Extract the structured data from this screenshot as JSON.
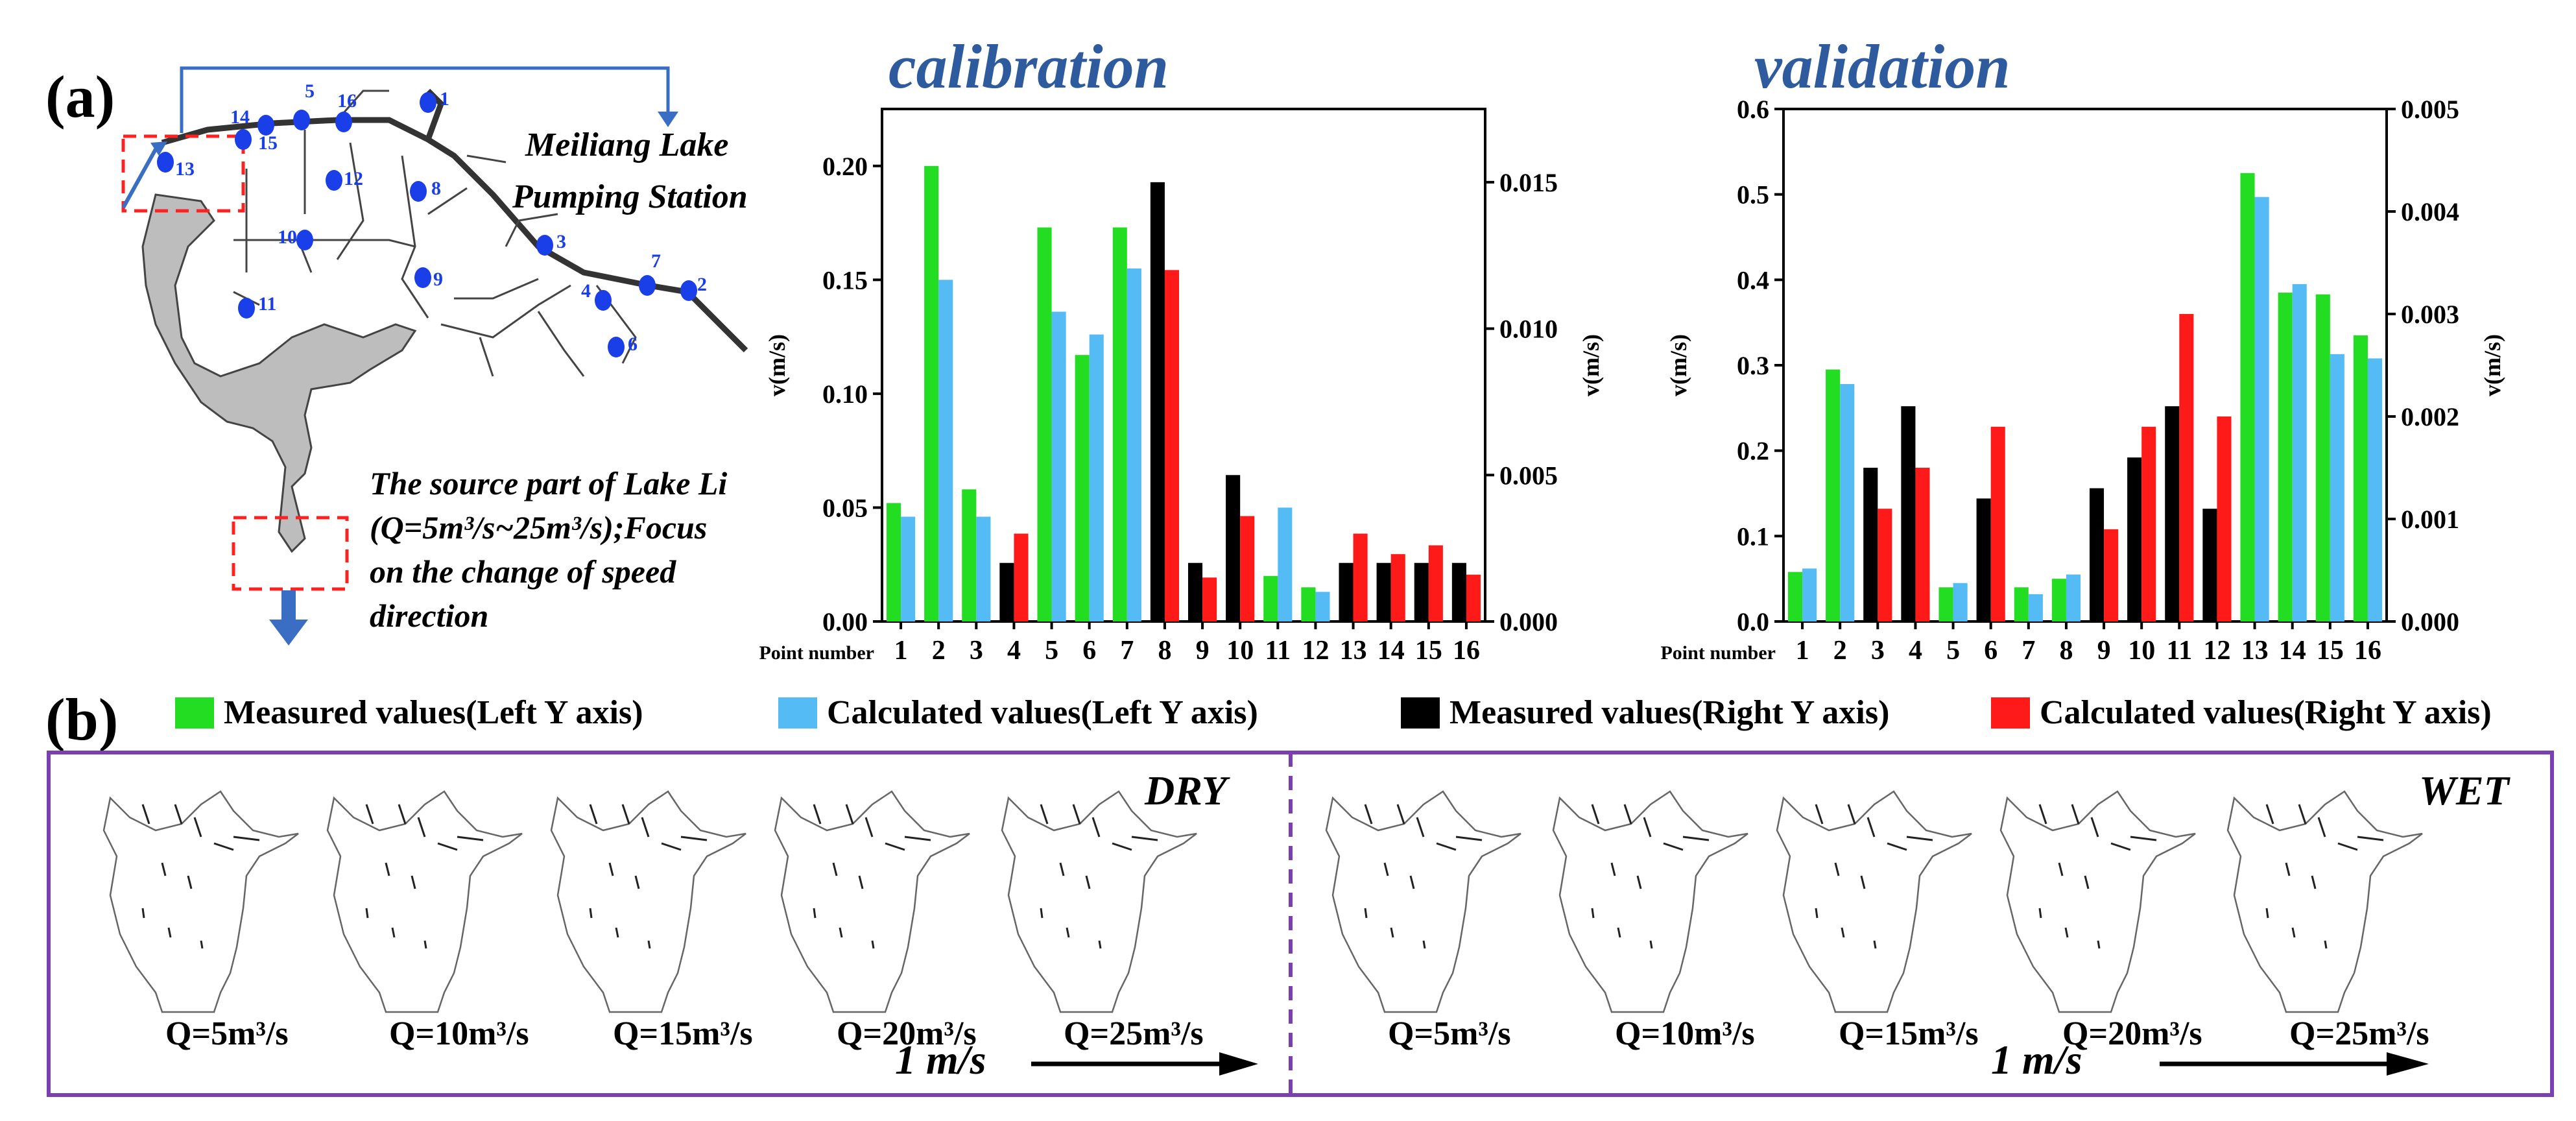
{
  "panel_a_label": "(a)",
  "panel_b_label": "(b)",
  "map": {
    "station_label_line1": "Meiliang Lake",
    "station_label_line2": "Pumping Station",
    "source_note_line1": "The source part of Lake Li",
    "source_note_line2": "(Q=5m³/s~25m³/s);Focus",
    "source_note_line3": "on the change of speed",
    "source_note_line4": "direction",
    "points": [
      "1",
      "2",
      "3",
      "4",
      "5",
      "6",
      "7",
      "8",
      "9",
      "10",
      "11",
      "12",
      "13",
      "14",
      "15",
      "16"
    ]
  },
  "colors": {
    "measured_left": "#22dd22",
    "calculated_left": "#55bbf5",
    "measured_right": "#000000",
    "calculated_right": "#ff1a1a",
    "map_points": "#1a3ee8",
    "title_blue": "#2e5a9e",
    "frame": "#7a3fb0",
    "arrow_blue": "#3a6ec4"
  },
  "legend": {
    "items": [
      {
        "label": "Measured values(Left Y axis)",
        "color": "#22dd22"
      },
      {
        "label": "Calculated values(Left Y axis)",
        "color": "#55bbf5"
      },
      {
        "label": "Measured values(Right Y axis)",
        "color": "#000000"
      },
      {
        "label": "Calculated values(Right Y axis)",
        "color": "#ff1a1a"
      }
    ]
  },
  "chart_data": [
    {
      "type": "bar",
      "title": "calibration",
      "xlabel": "Point number",
      "ylabel_left": "v(m/s)",
      "ylabel_right": "v(m/s)",
      "categories": [
        "1",
        "2",
        "3",
        "4",
        "5",
        "6",
        "7",
        "8",
        "9",
        "10",
        "11",
        "12",
        "13",
        "14",
        "15",
        "16"
      ],
      "ylim_left": [
        0,
        0.225
      ],
      "yticks_left": [
        "0.00",
        "0.05",
        "0.10",
        "0.15",
        "0.20"
      ],
      "ylim_right": [
        0,
        0.0175
      ],
      "yticks_right": [
        "0.000",
        "0.005",
        "0.010",
        "0.015"
      ],
      "series": [
        {
          "name": "Measured values(Left Y axis)",
          "axis": "left",
          "points": [
            [
              1,
              0.052
            ],
            [
              2,
              0.2
            ],
            [
              3,
              0.058
            ],
            [
              5,
              0.173
            ],
            [
              6,
              0.117
            ],
            [
              7,
              0.173
            ],
            [
              11,
              0.02
            ],
            [
              12,
              0.015
            ]
          ]
        },
        {
          "name": "Calculated values(Left Y axis)",
          "axis": "left",
          "points": [
            [
              1,
              0.046
            ],
            [
              2,
              0.15
            ],
            [
              3,
              0.046
            ],
            [
              5,
              0.136
            ],
            [
              6,
              0.126
            ],
            [
              7,
              0.155
            ],
            [
              11,
              0.05
            ],
            [
              12,
              0.013
            ]
          ]
        },
        {
          "name": "Measured values(Right Y axis)",
          "axis": "right",
          "points": [
            [
              4,
              0.002
            ],
            [
              8,
              0.015
            ],
            [
              9,
              0.002
            ],
            [
              10,
              0.005
            ],
            [
              13,
              0.002
            ],
            [
              14,
              0.002
            ],
            [
              15,
              0.002
            ],
            [
              16,
              0.002
            ]
          ]
        },
        {
          "name": "Calculated values(Right Y axis)",
          "axis": "right",
          "points": [
            [
              4,
              0.003
            ],
            [
              8,
              0.012
            ],
            [
              9,
              0.0015
            ],
            [
              10,
              0.0036
            ],
            [
              13,
              0.003
            ],
            [
              14,
              0.0023
            ],
            [
              15,
              0.0026
            ],
            [
              16,
              0.0016
            ]
          ]
        }
      ]
    },
    {
      "type": "bar",
      "title": "validation",
      "xlabel": "Point number",
      "ylabel_left": "v(m/s)",
      "ylabel_right": "v(m/s)",
      "categories": [
        "1",
        "2",
        "3",
        "4",
        "5",
        "6",
        "7",
        "8",
        "9",
        "10",
        "11",
        "12",
        "13",
        "14",
        "15",
        "16"
      ],
      "ylim_left": [
        0,
        0.6
      ],
      "yticks_left": [
        "0.0",
        "0.1",
        "0.2",
        "0.3",
        "0.4",
        "0.5",
        "0.6"
      ],
      "ylim_right": [
        0,
        0.005
      ],
      "yticks_right": [
        "0.000",
        "0.001",
        "0.002",
        "0.003",
        "0.004",
        "0.005"
      ],
      "series": [
        {
          "name": "Measured values(Left Y axis)",
          "axis": "left",
          "points": [
            [
              1,
              0.058
            ],
            [
              2,
              0.295
            ],
            [
              5,
              0.04
            ],
            [
              7,
              0.04
            ],
            [
              8,
              0.05
            ],
            [
              13,
              0.525
            ],
            [
              14,
              0.385
            ],
            [
              15,
              0.383
            ],
            [
              16,
              0.335
            ]
          ]
        },
        {
          "name": "Calculated values(Left Y axis)",
          "axis": "left",
          "points": [
            [
              1,
              0.062
            ],
            [
              2,
              0.278
            ],
            [
              5,
              0.045
            ],
            [
              7,
              0.032
            ],
            [
              8,
              0.055
            ],
            [
              13,
              0.497
            ],
            [
              14,
              0.395
            ],
            [
              15,
              0.313
            ],
            [
              16,
              0.308
            ]
          ]
        },
        {
          "name": "Measured values(Right Y axis)",
          "axis": "right",
          "points": [
            [
              3,
              0.0015
            ],
            [
              4,
              0.0021
            ],
            [
              6,
              0.0012
            ],
            [
              9,
              0.0013
            ],
            [
              10,
              0.0016
            ],
            [
              11,
              0.0021
            ],
            [
              12,
              0.0011
            ]
          ]
        },
        {
          "name": "Calculated values(Right Y axis)",
          "axis": "right",
          "points": [
            [
              3,
              0.0011
            ],
            [
              4,
              0.0015
            ],
            [
              6,
              0.0019
            ],
            [
              9,
              0.0009
            ],
            [
              10,
              0.0019
            ],
            [
              11,
              0.003
            ],
            [
              12,
              0.002
            ]
          ]
        }
      ]
    }
  ],
  "flow_panels": {
    "dry_label": "DRY",
    "wet_label": "WET",
    "scale_label": "1 m/s",
    "discharge_labels": [
      "Q=5m³/s",
      "Q=10m³/s",
      "Q=15m³/s",
      "Q=20m³/s",
      "Q=25m³/s"
    ]
  }
}
